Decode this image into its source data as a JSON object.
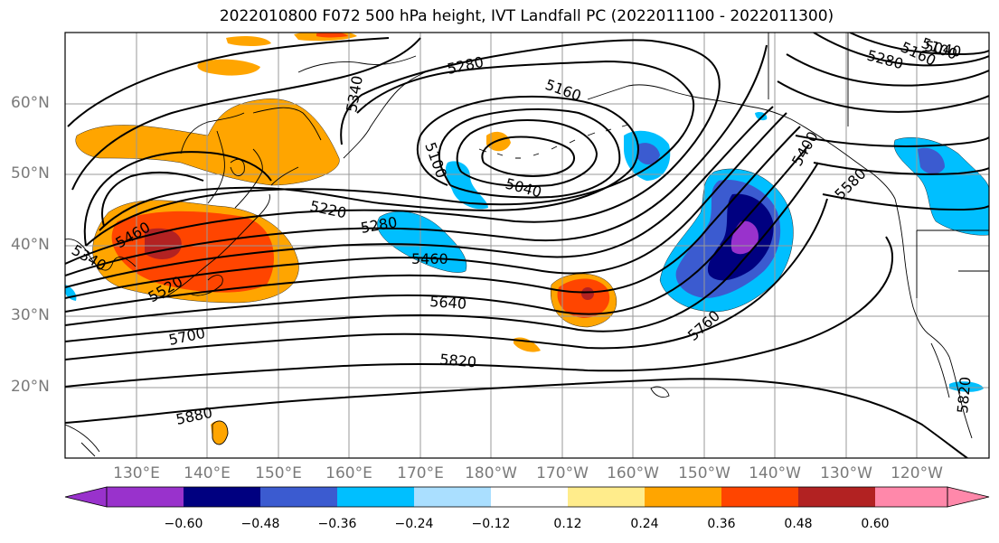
{
  "title": "2022010800 F072 500 hPa height, IVT Landfall PC (2022011100 - 2022011300)",
  "lat_labels": [
    "60°N",
    "50°N",
    "40°N",
    "30°N",
    "20°N"
  ],
  "lon_labels": [
    "130°E",
    "140°E",
    "150°E",
    "160°E",
    "170°E",
    "180°W",
    "170°W",
    "160°W",
    "150°W",
    "140°W",
    "130°W",
    "120°W"
  ],
  "colorbar": {
    "ticks": [
      "−0.60",
      "−0.48",
      "−0.36",
      "−0.24",
      "−0.12",
      "0.12",
      "0.24",
      "0.36",
      "0.48",
      "0.60"
    ],
    "colors": [
      "#9932cc",
      "#000080",
      "#3b5bd0",
      "#00bfff",
      "#aadfff",
      "#ffffff",
      "#ffec8b",
      "#ffa500",
      "#ff4500",
      "#b22222",
      "#ff88aa"
    ]
  },
  "contour_labels": [
    "5040",
    "5100",
    "5160",
    "5220",
    "5280",
    "5340",
    "5400",
    "5460",
    "5520",
    "5580",
    "5640",
    "5700",
    "5760",
    "5820",
    "5880"
  ]
}
